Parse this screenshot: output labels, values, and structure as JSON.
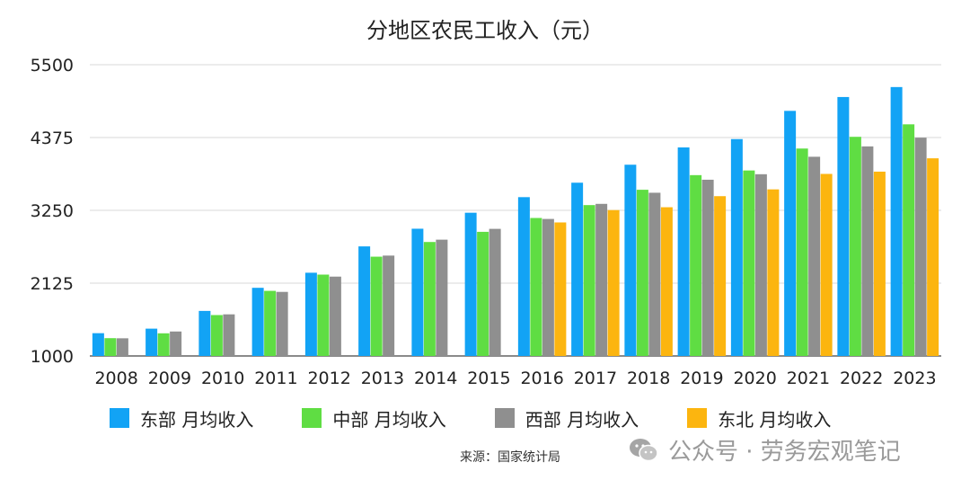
{
  "chart_data": {
    "type": "bar",
    "title": "分地区农民工收入（元）",
    "ylim": [
      1000,
      5500
    ],
    "yticks": [
      "1000",
      "2125",
      "3250",
      "4375",
      "5500"
    ],
    "grid": true,
    "legend_position": "bottom",
    "categories": [
      "2008",
      "2009",
      "2010",
      "2011",
      "2012",
      "2013",
      "2014",
      "2015",
      "2016",
      "2017",
      "2018",
      "2019",
      "2020",
      "2021",
      "2022",
      "2023"
    ],
    "series": [
      {
        "name": "东部 月均收入",
        "color": "#12a3f5",
        "values": [
          1352,
          1422,
          1696,
          2053,
          2286,
          2693,
          2966,
          3213,
          3454,
          3677,
          3955,
          4222,
          4351,
          4787,
          5001,
          5155
        ]
      },
      {
        "name": "中部 月均收入",
        "color": "#5fdd43",
        "values": [
          1275,
          1350,
          1632,
          2006,
          2257,
          2534,
          2761,
          2918,
          3132,
          3331,
          3568,
          3794,
          3866,
          4205,
          4386,
          4579
        ]
      },
      {
        "name": "西部 月均收入",
        "color": "#8f8f8f",
        "values": [
          1273,
          1378,
          1643,
          1990,
          2226,
          2551,
          2797,
          2964,
          3117,
          3350,
          3522,
          3723,
          3808,
          4078,
          4238,
          4373
        ]
      },
      {
        "name": "东北 月均收入",
        "color": "#fcb50f",
        "values": [
          null,
          null,
          null,
          null,
          null,
          null,
          null,
          null,
          3063,
          3254,
          3298,
          3469,
          3574,
          3813,
          3848,
          4054
        ]
      }
    ]
  },
  "source": "来源：国家统计局",
  "watermark": "公众号 · 劳务宏观笔记"
}
